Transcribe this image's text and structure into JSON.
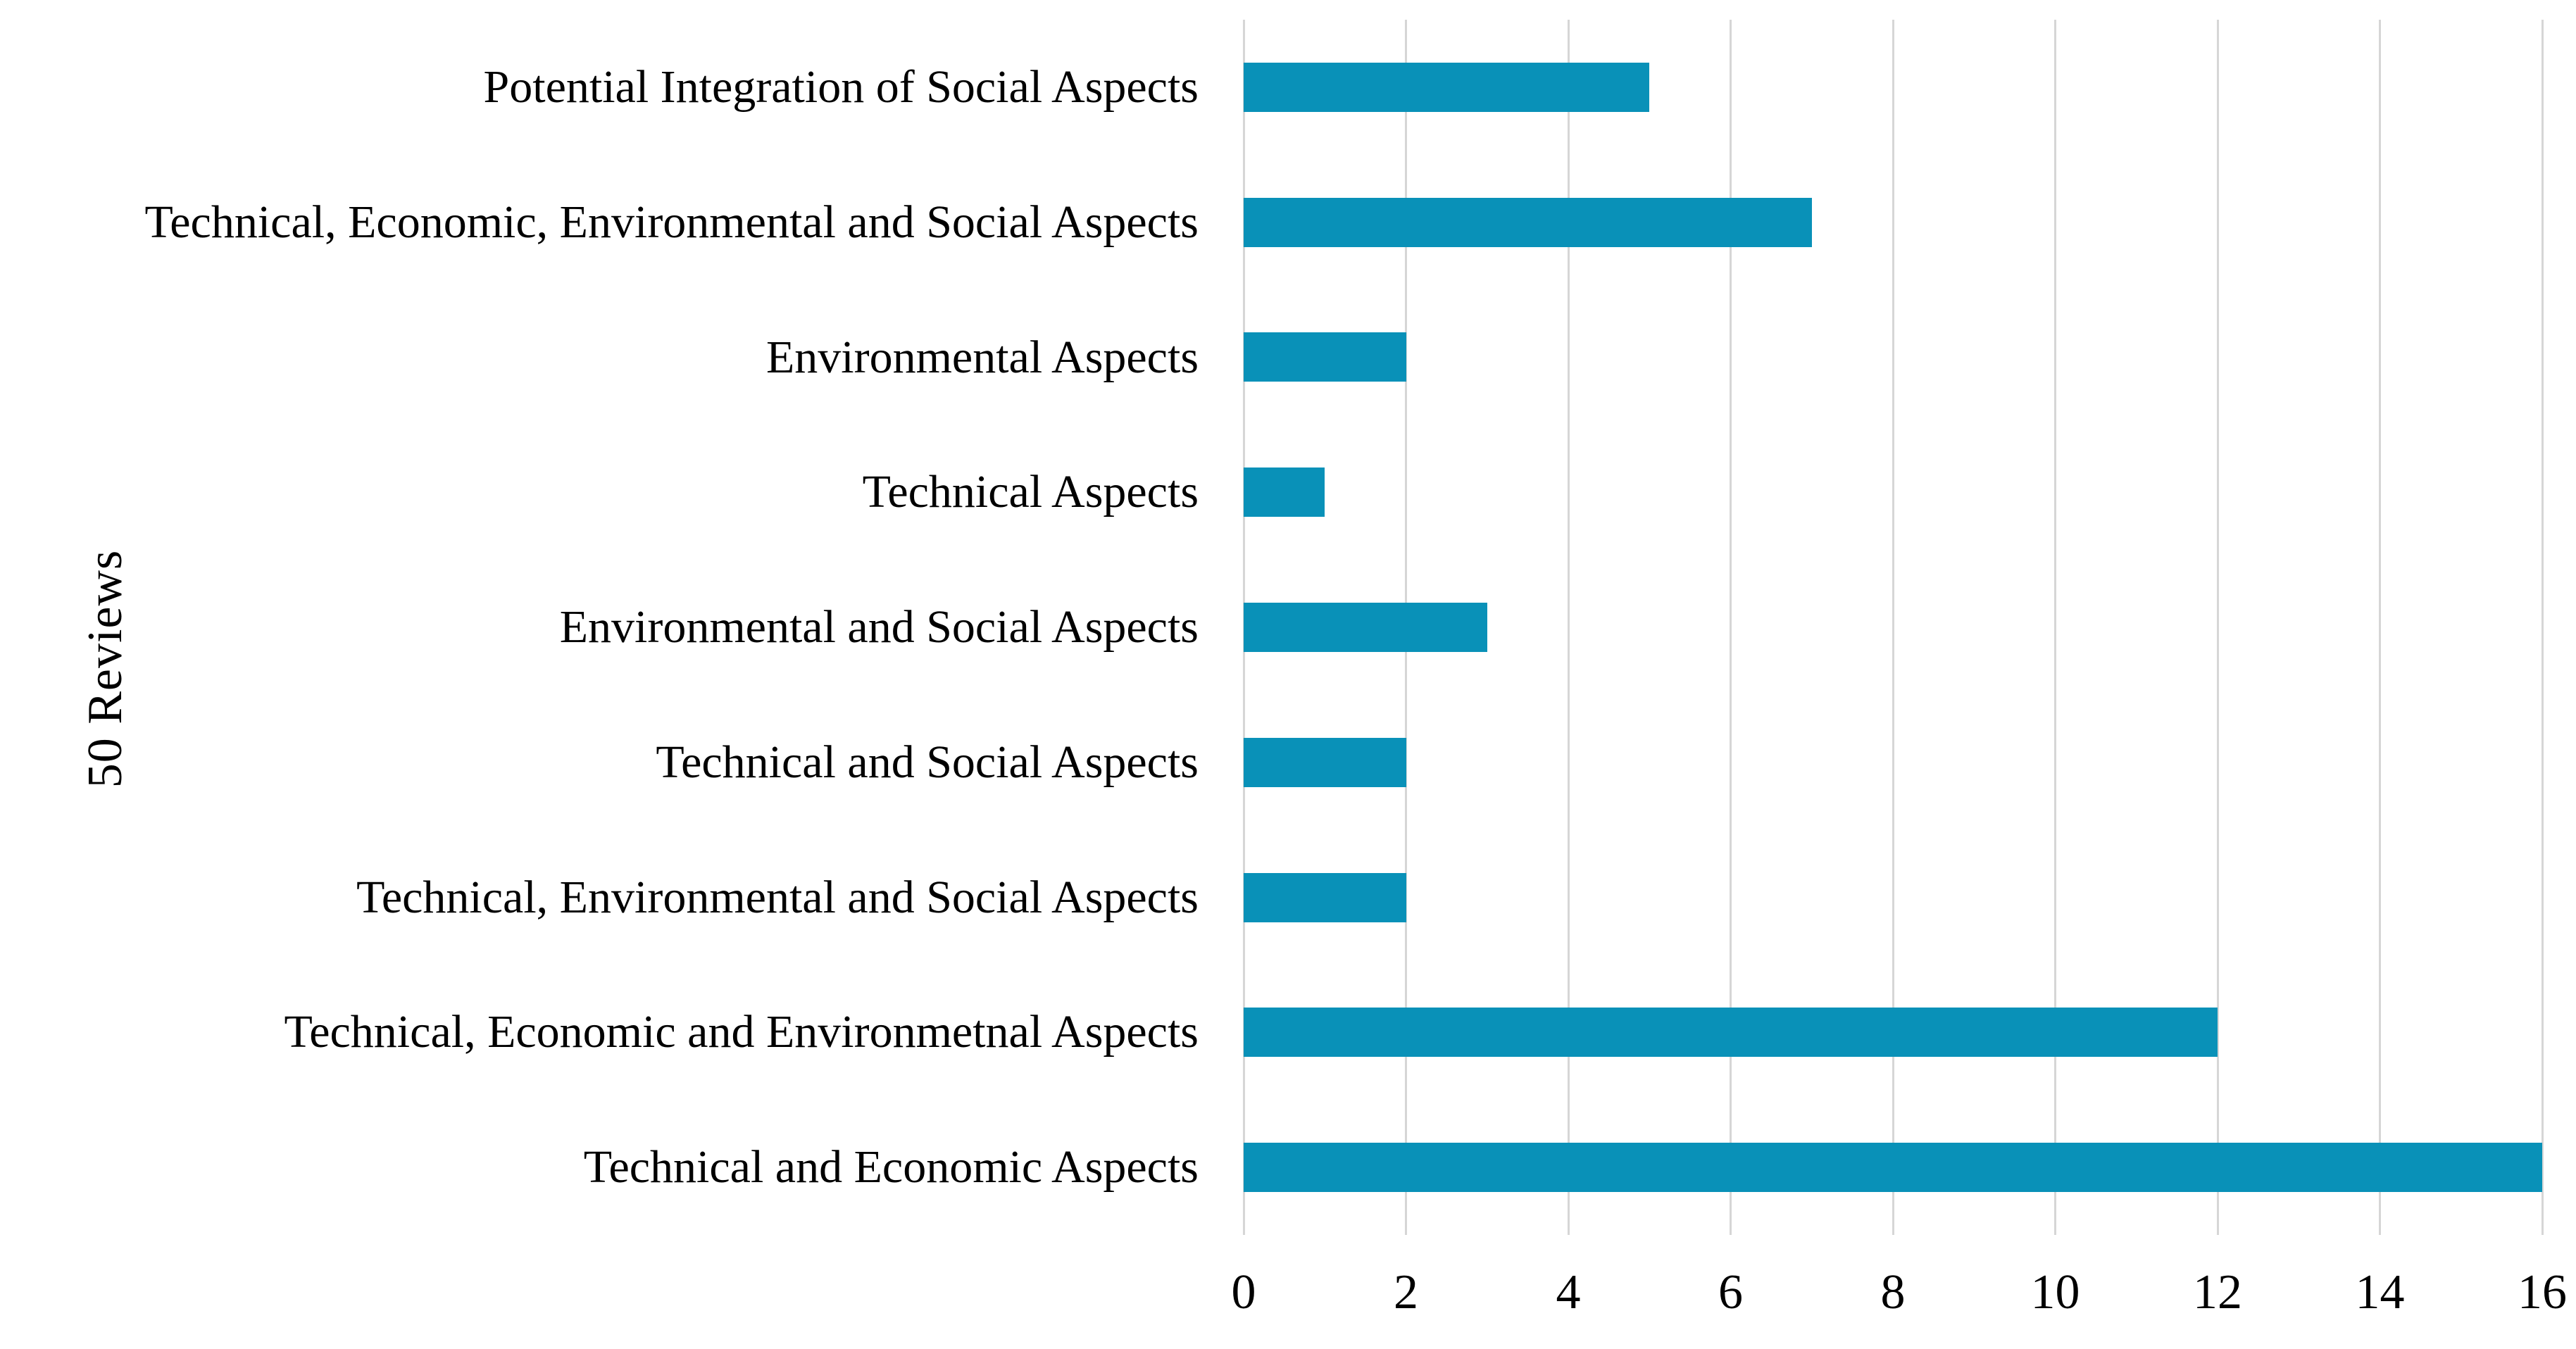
{
  "figure": {
    "background": "#ffffff",
    "text_color": "#000000"
  },
  "chart_data": {
    "type": "bar",
    "orientation": "horizontal",
    "title": "",
    "xlabel": "",
    "ylabel": "50 Reviews",
    "categories": [
      "Potential Integration of Social Aspects",
      "Technical, Economic, Environmental and Social  Aspects",
      "Environmental Aspects",
      "Technical Aspects",
      "Environmental and Social Aspects",
      "Technical and Social Aspects",
      "Technical, Environmental and Social Aspects",
      "Technical, Economic and Environmetnal Aspects",
      "Technical and Economic Aspects"
    ],
    "values": [
      5,
      7,
      2,
      1,
      3,
      2,
      2,
      12,
      16
    ],
    "xlim": [
      0,
      16
    ],
    "xticks": [
      0,
      2,
      4,
      6,
      8,
      10,
      12,
      14,
      16
    ],
    "grid": "vertical-gridlines-on",
    "legend": "none",
    "bar_color": "#0991b8",
    "gridline_color": "#d6d6d6"
  }
}
